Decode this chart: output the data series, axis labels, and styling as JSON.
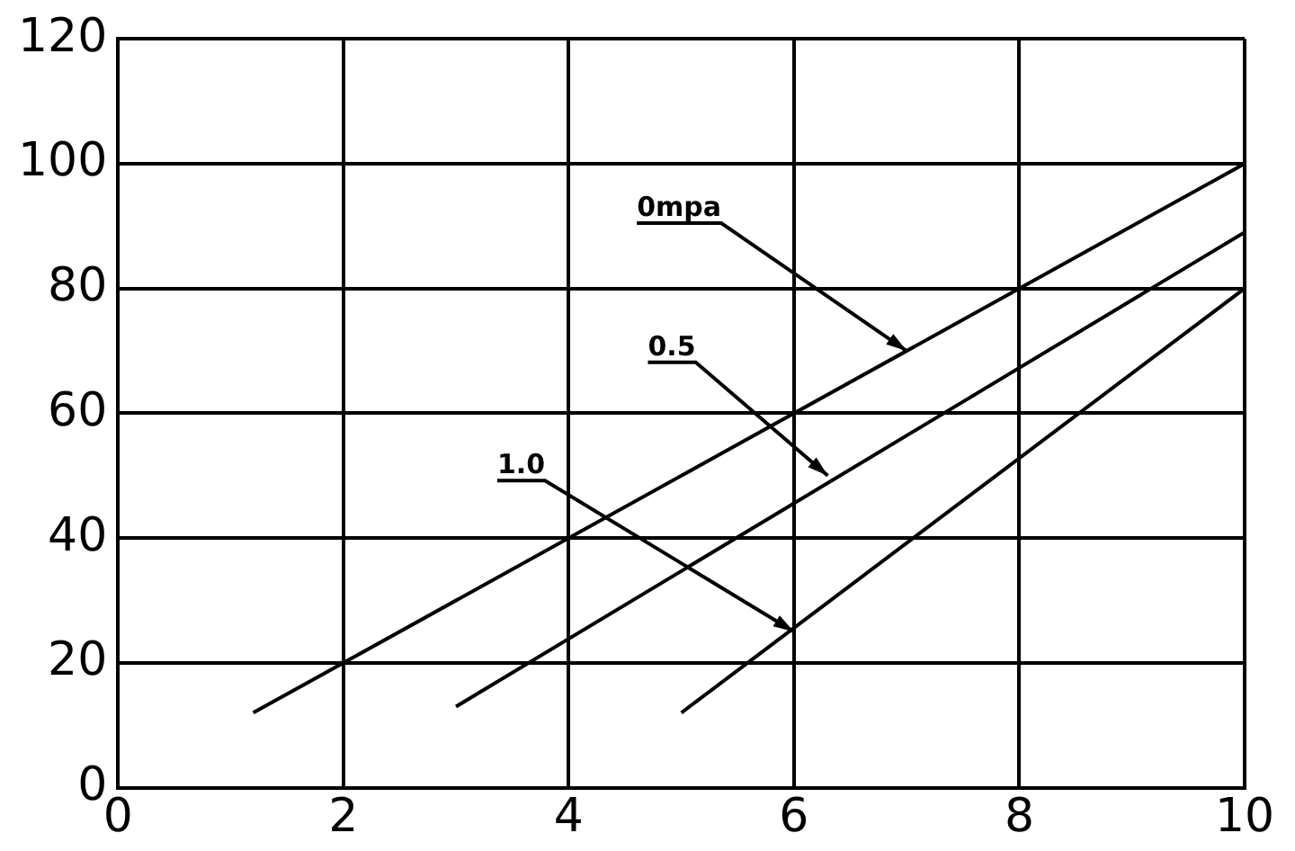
{
  "chart_data": {
    "type": "line",
    "xlim": [
      0,
      10
    ],
    "ylim": [
      0,
      120
    ],
    "xticks": [
      0,
      2,
      4,
      6,
      8,
      10
    ],
    "yticks": [
      0,
      20,
      40,
      60,
      80,
      100,
      120
    ],
    "grid": true,
    "legend": false,
    "marker": "none",
    "line_style": "solid",
    "series": [
      {
        "color": "#000000",
        "x": [
          1.2,
          10
        ],
        "values": [
          12,
          100
        ]
      },
      {
        "color": "#000000",
        "x": [
          3.0,
          10
        ],
        "values": [
          13,
          89
        ]
      },
      {
        "color": "#000000",
        "x": [
          5.0,
          10
        ],
        "values": [
          12,
          80
        ]
      }
    ],
    "annotations": [
      {
        "text": "0mpa",
        "x": 7,
        "y": 70
      },
      {
        "text": "0.5",
        "x": 6.3,
        "y": 50
      },
      {
        "text": "1.0",
        "x": 6,
        "y": 25
      }
    ]
  }
}
